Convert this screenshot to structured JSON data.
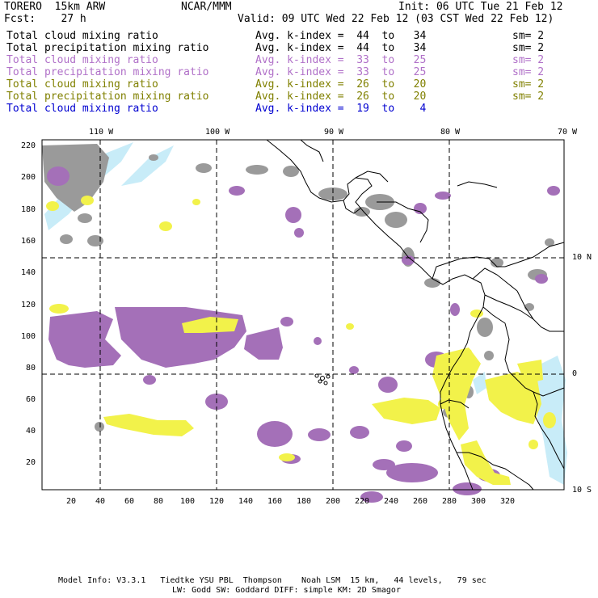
{
  "header": {
    "model_name": "TORERO  15km ARW",
    "institution": "NCAR/MMM",
    "init_time": "Init: 06 UTC Tue 21 Feb 12",
    "fcst_label": "Fcst:    27 h",
    "valid_time": "Valid: 09 UTC Wed 22 Feb 12 (03 CST Wed 22 Feb 12)"
  },
  "legend": [
    {
      "field": "Total cloud mixing ratio",
      "stat": "Avg. k-index =  44  to   34",
      "sm": "sm= 2",
      "color": "#000000"
    },
    {
      "field": "Total precipitation mixing ratio",
      "stat": "Avg. k-index =  44  to   34",
      "sm": "sm= 2",
      "color": "#000000"
    },
    {
      "field": "Total cloud mixing ratio",
      "stat": "Avg. k-index =  33  to   25",
      "sm": "sm= 2",
      "color": "#b070c8"
    },
    {
      "field": "Total precipitation mixing ratio",
      "stat": "Avg. k-index =  33  to   25",
      "sm": "sm= 2",
      "color": "#b070c8"
    },
    {
      "field": "Total cloud mixing ratio",
      "stat": "Avg. k-index =  26  to   20",
      "sm": "sm= 2",
      "color": "#808000"
    },
    {
      "field": "Total precipitation mixing ratio",
      "stat": "Avg. k-index =  26  to   20",
      "sm": "sm= 2",
      "color": "#808000"
    },
    {
      "field": "Total cloud mixing ratio",
      "stat": "Avg. k-index =  19  to    4",
      "sm": "",
      "color": "#0000d0"
    }
  ],
  "map": {
    "lon_labels": [
      "110 W",
      "100 W",
      "90 W",
      "80 W",
      "70 W"
    ],
    "lat_labels": [
      "10 N",
      "0",
      "10 S"
    ],
    "x_ticks": [
      "20",
      "40",
      "60",
      "80",
      "100",
      "120",
      "140",
      "160",
      "180",
      "200",
      "220",
      "240",
      "260",
      "280",
      "300",
      "320"
    ],
    "y_ticks": [
      "220",
      "200",
      "180",
      "160",
      "140",
      "120",
      "100",
      "80",
      "60",
      "40",
      "20"
    ],
    "colors": {
      "gray": "#9a9a9a",
      "purple": "#a470b8",
      "yellow": "#f2f24a",
      "light_blue": "#c8ecf8",
      "coast": "#000000",
      "grid": "#000000"
    }
  },
  "footer": {
    "line1": "Model Info: V3.3.1   Tiedtke YSU PBL  Thompson    Noah LSM  15 km,   44 levels,   79 sec",
    "line2": "LW: Godd SW: Goddard DIFF: simple KM: 2D Smagor"
  }
}
